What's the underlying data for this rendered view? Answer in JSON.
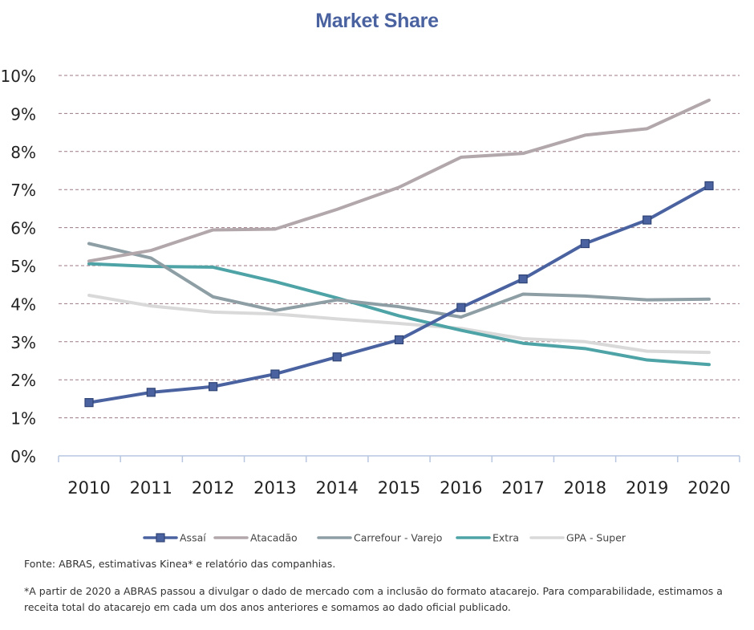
{
  "title": "Market Share",
  "chart_data": {
    "type": "line",
    "title": "Market Share",
    "categories": [
      "2010",
      "2011",
      "2012",
      "2013",
      "2014",
      "2015",
      "2016",
      "2017",
      "2018",
      "2019",
      "2020"
    ],
    "ylim": [
      0,
      10
    ],
    "y_ticks": [
      "0%",
      "1%",
      "2%",
      "3%",
      "4%",
      "5%",
      "6%",
      "7%",
      "8%",
      "9%",
      "10%"
    ],
    "grid": true,
    "legend_position": "bottom",
    "series": [
      {
        "name": "Assaí",
        "color": "#4a63a0",
        "marker": true,
        "values": [
          1.4,
          1.67,
          1.82,
          2.15,
          2.6,
          3.05,
          3.9,
          4.65,
          5.58,
          6.2,
          7.1
        ]
      },
      {
        "name": "Atacadão",
        "color": "#b2a7ab",
        "marker": false,
        "values": [
          5.12,
          5.4,
          5.94,
          5.96,
          6.48,
          7.06,
          7.85,
          7.95,
          8.43,
          8.6,
          9.35
        ]
      },
      {
        "name": "Carrefour - Varejo",
        "color": "#8e9ea5",
        "marker": false,
        "values": [
          5.58,
          5.2,
          4.18,
          3.82,
          4.1,
          3.92,
          3.65,
          4.25,
          4.2,
          4.1,
          4.12
        ]
      },
      {
        "name": "Extra",
        "color": "#4da3a6",
        "marker": false,
        "values": [
          5.05,
          4.98,
          4.96,
          4.58,
          4.15,
          3.68,
          3.3,
          2.96,
          2.82,
          2.52,
          2.4
        ]
      },
      {
        "name": "GPA - Super",
        "color": "#d9d9d9",
        "marker": false,
        "values": [
          4.22,
          3.94,
          3.78,
          3.73,
          3.6,
          3.48,
          3.35,
          3.08,
          3.0,
          2.75,
          2.72
        ]
      }
    ]
  },
  "notes": {
    "source": "Fonte: ABRAS, estimativas Kinea* e relatório das companhias.",
    "methodology": "*A partir de 2020 a ABRAS passou a divulgar o dado de mercado com a inclusão do formato atacarejo. Para comparabilidade, estimamos a receita total do atacarejo em cada um dos anos anteriores e  somamos ao dado oficial publicado."
  }
}
